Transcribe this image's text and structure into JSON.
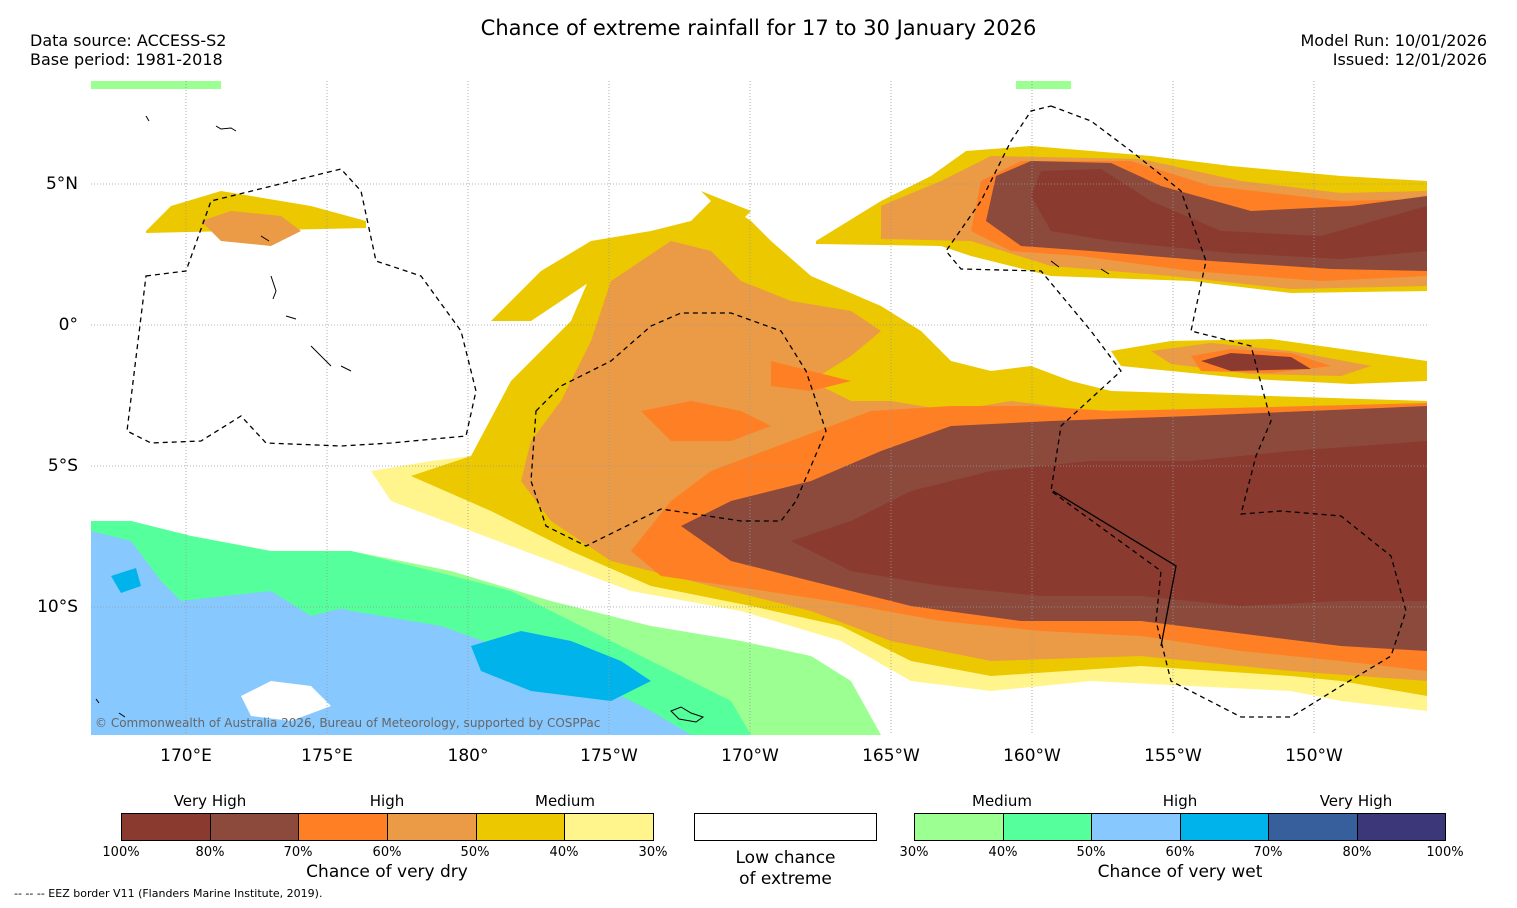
{
  "header": {
    "title": "Chance of extreme rainfall for 17 to 30 January 2026",
    "data_source": "Data source: ACCESS-S2",
    "base_period": "Base period: 1981-2018",
    "model_run": "Model Run: 10/01/2026",
    "issued": "Issued: 12/01/2026"
  },
  "map": {
    "latitude_labels": [
      "5°N",
      "0°",
      "5°S",
      "10°S"
    ],
    "longitude_labels": [
      "170°E",
      "175°E",
      "180°",
      "175°W",
      "170°W",
      "165°W",
      "160°W",
      "155°W",
      "150°W"
    ],
    "credit": "© Commonwealth of Australia 2026, Bureau of Meteorology, supported by COSPPac"
  },
  "legend": {
    "dry": {
      "levels": [
        "Very High",
        "High",
        "Medium"
      ],
      "colors": [
        "#8b3a30",
        "#8b4a3c",
        "#ff7f24",
        "#eb9a46",
        "#ebc800",
        "#fff58c"
      ],
      "ticks": [
        "100%",
        "80%",
        "70%",
        "60%",
        "50%",
        "40%",
        "30%"
      ],
      "caption": "Chance of very dry"
    },
    "low": {
      "caption_line1": "Low chance",
      "caption_line2": "of extreme"
    },
    "wet": {
      "levels": [
        "Medium",
        "High",
        "Very High"
      ],
      "colors": [
        "#9bff91",
        "#55ff9b",
        "#87c8ff",
        "#00b4eb",
        "#375f9b",
        "#3c3778"
      ],
      "ticks": [
        "30%",
        "40%",
        "50%",
        "60%",
        "70%",
        "80%",
        "100%"
      ],
      "caption": "Chance of very wet"
    },
    "eez_note": "-- -- -- EEZ border V11 (Flanders Marine Institute, 2019)."
  }
}
